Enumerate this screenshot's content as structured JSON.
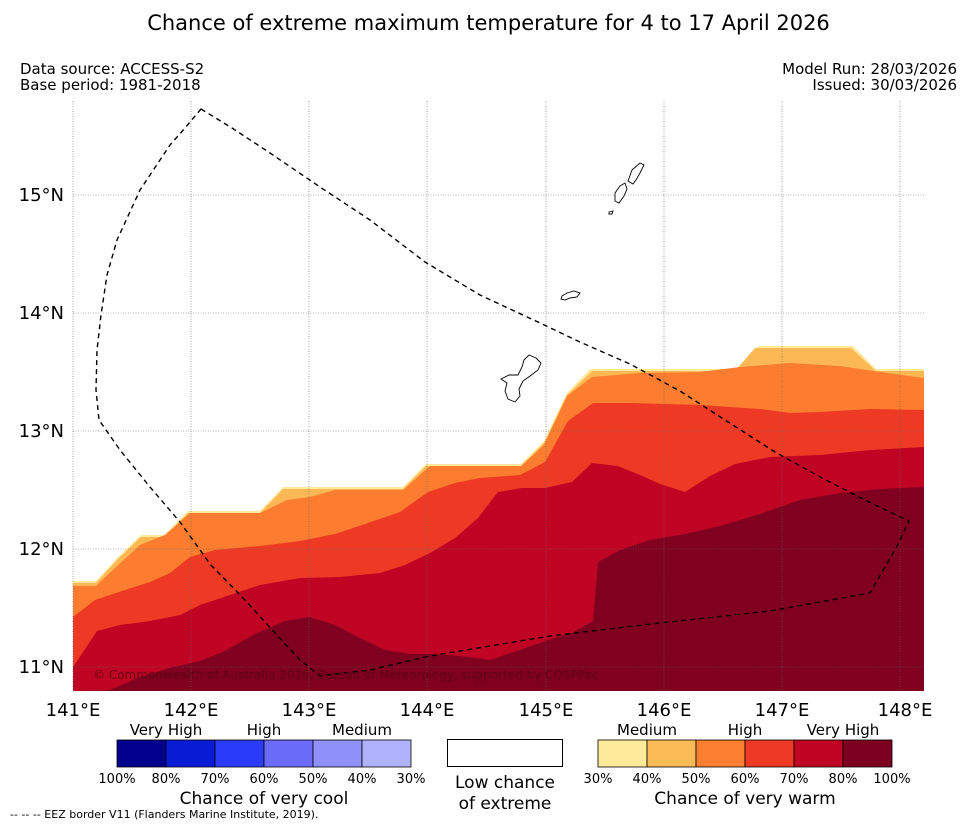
{
  "title": "Chance of extreme maximum temperature for 4 to 17 April 2026",
  "meta": {
    "data_source": "Data source: ACCESS-S2",
    "base_period": "Base period: 1981-2018",
    "model_run": "Model Run: 28/03/2026",
    "issued": "Issued: 30/03/2026"
  },
  "map": {
    "lon_labels": [
      "141°E",
      "142°E",
      "143°E",
      "144°E",
      "145°E",
      "146°E",
      "147°E",
      "148°E"
    ],
    "lat_labels": [
      "15°N",
      "14°N",
      "13°N",
      "12°N",
      "11°N"
    ],
    "copyright": "© Commonwealth of Australia 2026, Bureau of Meteorology, supported by COSPPac",
    "islands": [
      "Guam",
      "Rota",
      "Tinian",
      "Saipan"
    ],
    "eez_line": "EEZ border",
    "warm_zone_colors": [
      "#fee89a",
      "#fdb856",
      "#fc7d2f",
      "#ee3a24",
      "#c00424",
      "#800020"
    ]
  },
  "colorbars": {
    "cool": {
      "headings": [
        "Very High",
        "High",
        "Medium"
      ],
      "colors": [
        "#00008c",
        "#0a1bd6",
        "#2a3cf9",
        "#6a6cf9",
        "#8f90fa",
        "#b0b2fb"
      ],
      "ticks": [
        "100%",
        "80%",
        "70%",
        "60%",
        "50%",
        "40%",
        "30%"
      ],
      "caption": "Chance of very cool"
    },
    "low": {
      "caption_line1": "Low chance",
      "caption_line2": "of extreme"
    },
    "warm": {
      "headings": [
        "Medium",
        "High",
        "Very High"
      ],
      "colors": [
        "#feeb9a",
        "#fdbb58",
        "#fc7e30",
        "#ee3a24",
        "#c00424",
        "#7d0020"
      ],
      "ticks": [
        "30%",
        "40%",
        "50%",
        "60%",
        "70%",
        "80%",
        "100%"
      ],
      "caption": "Chance of very warm"
    }
  },
  "footnote": "--  --  -- EEZ border V11 (Flanders Marine Institute, 2019)."
}
